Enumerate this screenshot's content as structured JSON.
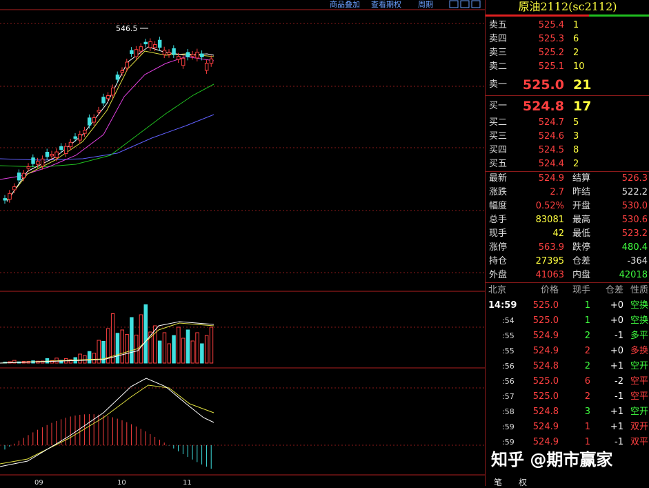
{
  "toolbar": [
    "商品叠加",
    "查看期权",
    "周期"
  ],
  "chart": {
    "high_label": "546.5",
    "x_labels": [
      "09",
      "10",
      "11"
    ]
  },
  "quote": {
    "title": "原油2112(sc2112)",
    "asks": [
      {
        "label": "卖五",
        "price": "525.4",
        "volume": "1"
      },
      {
        "label": "卖四",
        "price": "525.3",
        "volume": "6"
      },
      {
        "label": "卖三",
        "price": "525.2",
        "volume": "2"
      },
      {
        "label": "卖二",
        "price": "525.1",
        "volume": "10"
      },
      {
        "label": "卖一",
        "price": "525.0",
        "volume": "21"
      }
    ],
    "bids": [
      {
        "label": "买一",
        "price": "524.8",
        "volume": "17"
      },
      {
        "label": "买二",
        "price": "524.7",
        "volume": "5"
      },
      {
        "label": "买三",
        "price": "524.6",
        "volume": "3"
      },
      {
        "label": "买四",
        "price": "524.5",
        "volume": "8"
      },
      {
        "label": "买五",
        "price": "524.4",
        "volume": "2"
      }
    ],
    "stats": [
      [
        {
          "text": "最新"
        },
        {
          "text": "524.9",
          "color": "#ff4040"
        },
        {
          "text": "结算"
        },
        {
          "text": "526.3",
          "color": "#ff4040"
        }
      ],
      [
        {
          "text": "涨跌"
        },
        {
          "text": "2.7",
          "color": "#ff4040"
        },
        {
          "text": "昨结"
        },
        {
          "text": "522.2",
          "color": "#e0e0e0"
        }
      ],
      [
        {
          "text": "幅度"
        },
        {
          "text": "0.52%",
          "color": "#ff4040"
        },
        {
          "text": "开盘"
        },
        {
          "text": "530.0",
          "color": "#ff4040"
        }
      ],
      [
        {
          "text": "总手"
        },
        {
          "text": "83081",
          "color": "#ffff40"
        },
        {
          "text": "最高"
        },
        {
          "text": "530.6",
          "color": "#ff4040"
        }
      ],
      [
        {
          "text": "现手"
        },
        {
          "text": "42",
          "color": "#ffff40"
        },
        {
          "text": "最低"
        },
        {
          "text": "523.2",
          "color": "#ff4040"
        }
      ],
      [
        {
          "text": "涨停"
        },
        {
          "text": "563.9",
          "color": "#ff4040"
        },
        {
          "text": "跌停"
        },
        {
          "text": "480.4",
          "color": "#40ff40"
        }
      ],
      [
        {
          "text": "持仓"
        },
        {
          "text": "27395",
          "color": "#ffff40"
        },
        {
          "text": "仓差"
        },
        {
          "text": "-364",
          "color": "#e0e0e0"
        }
      ],
      [
        {
          "text": "外盘"
        },
        {
          "text": "41063",
          "color": "#ff4040"
        },
        {
          "text": "内盘"
        },
        {
          "text": "42018",
          "color": "#40ff40"
        }
      ]
    ]
  },
  "ticks": {
    "header": [
      "北京",
      "价格",
      "现手",
      "仓差",
      "性质"
    ],
    "rows": [
      {
        "cells": [
          "14:59",
          "525.0",
          "1",
          "+0",
          "空换"
        ],
        "color": "#40ff40"
      },
      {
        "cells": [
          ":54",
          "525.0",
          "1",
          "+0",
          "空换"
        ],
        "color": "#40ff40"
      },
      {
        "cells": [
          ":55",
          "524.9",
          "2",
          "-1",
          "多平"
        ],
        "color": "#40ff40"
      },
      {
        "cells": [
          ":55",
          "524.9",
          "2",
          "+0",
          "多换"
        ],
        "color": "#ff4040"
      },
      {
        "cells": [
          ":56",
          "524.8",
          "2",
          "+1",
          "空开"
        ],
        "color": "#40ff40"
      },
      {
        "cells": [
          ":56",
          "525.0",
          "6",
          "-2",
          "空平"
        ],
        "color": "#ff4040"
      },
      {
        "cells": [
          ":57",
          "525.0",
          "2",
          "-1",
          "空平"
        ],
        "color": "#ff4040"
      },
      {
        "cells": [
          ":58",
          "524.8",
          "3",
          "+1",
          "空开"
        ],
        "color": "#40ff40"
      },
      {
        "cells": [
          ":59",
          "524.9",
          "1",
          "+1",
          "双开"
        ],
        "color": "#ff4040"
      },
      {
        "cells": [
          ":59",
          "524.9",
          "1",
          "-1",
          "双平"
        ],
        "color": "#ff4040"
      }
    ]
  },
  "watermark": "知乎 @期市赢家",
  "tabs": [
    "笔",
    "权"
  ]
}
